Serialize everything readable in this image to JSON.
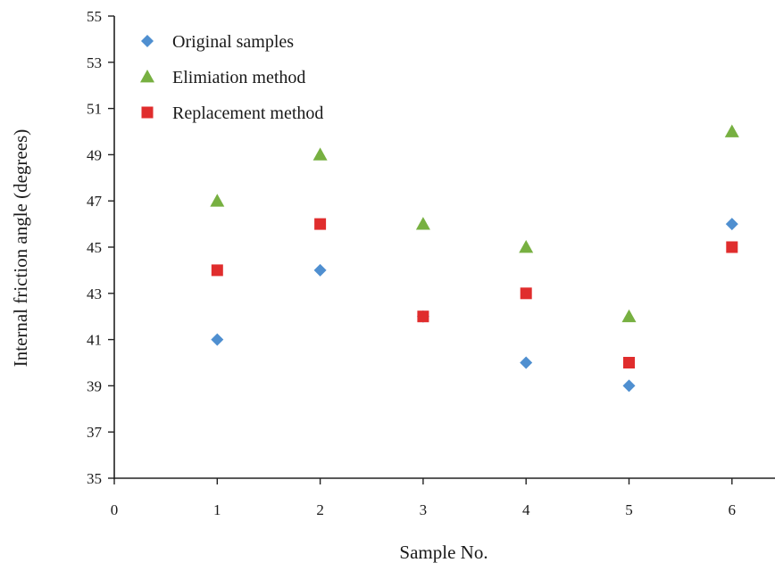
{
  "chart_data": {
    "type": "scatter",
    "title": "",
    "xlabel": "Sample No.",
    "ylabel": "Internal friction angle (degrees)",
    "xlim": [
      0,
      6
    ],
    "ylim": [
      35,
      55
    ],
    "xticks": [
      0,
      1,
      2,
      3,
      4,
      5,
      6
    ],
    "yticks": [
      35,
      37,
      39,
      41,
      43,
      45,
      47,
      49,
      51,
      53,
      55
    ],
    "grid": false,
    "legend_position": "top-left",
    "series": [
      {
        "name": "Original samples",
        "marker": "diamond",
        "color": "#4f8fd0",
        "points": [
          {
            "x": 1,
            "y": 41
          },
          {
            "x": 2,
            "y": 44
          },
          {
            "x": 3,
            "y": 42
          },
          {
            "x": 4,
            "y": 40
          },
          {
            "x": 5,
            "y": 39
          },
          {
            "x": 6,
            "y": 46
          }
        ]
      },
      {
        "name": "Elimiation method",
        "marker": "triangle",
        "color": "#77b041",
        "points": [
          {
            "x": 1,
            "y": 47
          },
          {
            "x": 2,
            "y": 49
          },
          {
            "x": 3,
            "y": 46
          },
          {
            "x": 4,
            "y": 45
          },
          {
            "x": 5,
            "y": 42
          },
          {
            "x": 6,
            "y": 50
          }
        ]
      },
      {
        "name": "Replacement method",
        "marker": "square",
        "color": "#e02d2d",
        "points": [
          {
            "x": 1,
            "y": 44
          },
          {
            "x": 2,
            "y": 46
          },
          {
            "x": 3,
            "y": 42
          },
          {
            "x": 4,
            "y": 43
          },
          {
            "x": 5,
            "y": 40
          },
          {
            "x": 6,
            "y": 45
          }
        ]
      }
    ]
  }
}
